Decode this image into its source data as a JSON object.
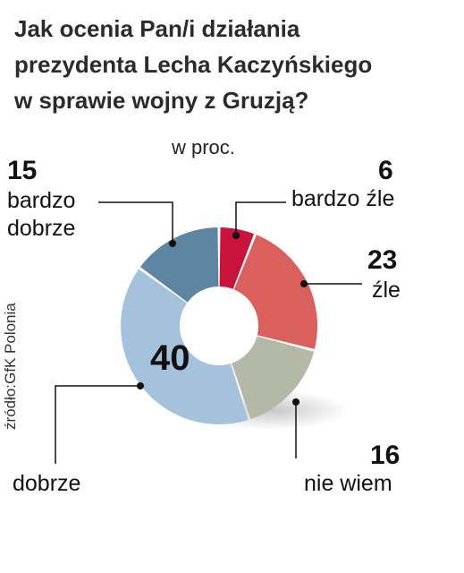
{
  "title_lines": [
    "Jak ocenia Pan/i działania",
    "prezydenta Lecha Kaczyńskiego",
    "w sprawie wojny z Gruzją?"
  ],
  "unit": "w proc.",
  "source": "źródło:GfK Polonia",
  "chart_data": {
    "type": "pie",
    "variant": "donut",
    "title": "Jak ocenia Pan/i działania prezydenta Lecha Kaczyńskiego w sprawie wojny z Gruzją?",
    "unit": "w proc.",
    "categories": [
      "bardzo źle",
      "źle",
      "nie wiem",
      "dobrze",
      "bardzo dobrze"
    ],
    "values": [
      6,
      23,
      16,
      40,
      15
    ],
    "colors": [
      "#c8143c",
      "#d9605c",
      "#b4b8a6",
      "#a4c2dc",
      "#5e86a2"
    ],
    "value_labels": [
      "6",
      "23",
      "16",
      "40",
      "15"
    ]
  }
}
